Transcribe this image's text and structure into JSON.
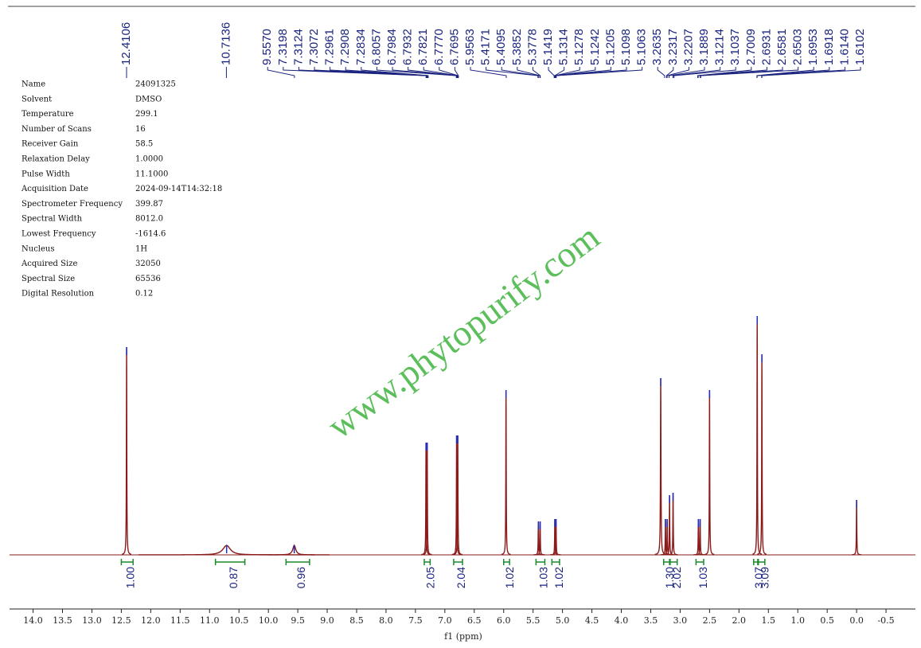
{
  "chart_data": {
    "type": "nmr",
    "xlabel": "f1 (ppm)",
    "watermark": "www.phytopurify.com",
    "xlim": [
      14.4,
      -1.0
    ],
    "ylim": [
      0,
      100
    ],
    "xticks": [
      {
        "value": 14,
        "label": "14.0"
      },
      13.5,
      {
        "value": 13,
        "label": "13.0"
      },
      12.5,
      {
        "value": 12,
        "label": "12.0"
      },
      11.5,
      {
        "value": 11,
        "label": "11.0"
      },
      10.5,
      {
        "value": 10,
        "label": "10.0"
      },
      9.5,
      {
        "value": 9,
        "label": "9.0"
      },
      8.5,
      {
        "value": 8,
        "label": "8.0"
      },
      7.5,
      {
        "value": 7,
        "label": "7.0"
      },
      6.5,
      {
        "value": 6,
        "label": "6.0"
      },
      5.5,
      {
        "value": 5,
        "label": "5.0"
      },
      4.5,
      {
        "value": 4,
        "label": "4.0"
      },
      3.5,
      {
        "value": 3,
        "label": "3.0"
      },
      2.5,
      {
        "value": 2,
        "label": "2.0"
      },
      1.5,
      {
        "value": 1,
        "label": "1.0"
      },
      0.5,
      {
        "value": 0,
        "label": "0.0"
      },
      -0.5
    ],
    "color": "#8b1a1a",
    "peaks": {
      "x": [
        12.41,
        10.71,
        9.56,
        7.32,
        7.3,
        6.8,
        6.78,
        5.96,
        5.41,
        5.38,
        5.13,
        5.11,
        3.33,
        3.25,
        3.22,
        3.18,
        3.12,
        2.69,
        2.66,
        2.5,
        1.69,
        1.61,
        0.0
      ],
      "height": [
        87,
        4,
        4,
        47,
        47,
        50,
        50,
        69,
        14,
        14,
        15,
        15,
        74,
        15,
        15,
        25,
        26,
        15,
        15,
        69,
        100,
        84,
        23
      ],
      "width": [
        0.008,
        0.15,
        0.06,
        0.008,
        0.008,
        0.008,
        0.008,
        0.008,
        0.008,
        0.008,
        0.008,
        0.008,
        0.01,
        0.008,
        0.008,
        0.008,
        0.008,
        0.008,
        0.008,
        0.008,
        0.008,
        0.008,
        0.008
      ]
    },
    "peak_labels": [
      12.4106,
      10.7136,
      9.557,
      7.3198,
      7.3124,
      7.3072,
      7.2961,
      7.2908,
      7.2834,
      6.8057,
      6.7984,
      6.7932,
      6.7821,
      6.777,
      6.7695,
      5.9563,
      5.4171,
      5.4095,
      5.3852,
      5.3778,
      5.1419,
      5.1314,
      5.1278,
      5.1242,
      5.1205,
      5.1098,
      5.1063,
      3.2635,
      3.2317,
      3.2207,
      3.1889,
      3.1214,
      3.1037,
      2.7009,
      2.6931,
      2.6581,
      2.6503,
      1.6953,
      1.6918,
      1.614,
      1.6102
    ],
    "peak_label_texts": [
      "12.4106",
      "10.7136",
      "9.5570",
      "7.3198",
      "7.3124",
      "7.3072",
      "7.2961",
      "7.2908",
      "7.2834",
      "6.8057",
      "6.7984",
      "6.7932",
      "6.7821",
      "6.7770",
      "6.7695",
      "5.9563",
      "5.4171",
      "5.4095",
      "5.3852",
      "5.3778",
      "5.1419",
      "5.1314",
      "5.1278",
      "5.1242",
      "5.1205",
      "5.1098",
      "5.1063",
      "3.2635",
      "3.2317",
      "3.2207",
      "3.1889",
      "3.1214",
      "3.1037",
      "2.7009",
      "2.6931",
      "2.6581",
      "2.6503",
      "1.6953",
      "1.6918",
      "1.6140",
      "1.6102"
    ],
    "integrals": {
      "ranges": [
        [
          12.5,
          12.3
        ],
        [
          10.9,
          10.4
        ],
        [
          9.7,
          9.3
        ],
        [
          7.35,
          7.25
        ],
        [
          6.85,
          6.7
        ],
        [
          6.0,
          5.9
        ],
        [
          5.45,
          5.3
        ],
        [
          5.18,
          5.05
        ],
        [
          3.28,
          3.18
        ],
        [
          3.17,
          3.05
        ],
        [
          2.73,
          2.6
        ],
        [
          1.75,
          1.68
        ],
        [
          1.67,
          1.56
        ]
      ],
      "values": [
        1,
        0.87,
        0.96,
        2.05,
        2.04,
        1.02,
        1.03,
        1.02,
        1.3,
        2.02,
        1.03,
        3.07,
        3.09
      ],
      "value_labels": [
        "1.00",
        "0.87",
        "0.96",
        "2.05",
        "2.04",
        "1.02",
        "1.03",
        "1.02",
        "1.30",
        "2.02",
        "1.03",
        "3.07",
        "3.09"
      ]
    },
    "parameters": [
      [
        "Name",
        "24091325"
      ],
      [
        "Solvent",
        "DMSO"
      ],
      [
        "Temperature",
        "299.1"
      ],
      [
        "Number of Scans",
        "16"
      ],
      [
        "Receiver Gain",
        "58.5"
      ],
      [
        "Relaxation Delay",
        "1.0000"
      ],
      [
        "Pulse Width",
        "11.1000"
      ],
      [
        "Acquisition Date",
        "2024-09-14T14:32:18"
      ],
      [
        "Spectrometer Frequency",
        "399.87"
      ],
      [
        "Spectral Width",
        "8012.0"
      ],
      [
        "Lowest Frequency",
        "-1614.6"
      ],
      [
        "Nucleus",
        "1H"
      ],
      [
        "Acquired Size",
        "32050"
      ],
      [
        "Spectral Size",
        "65536"
      ],
      [
        "Digital Resolution",
        "0.12"
      ]
    ]
  }
}
